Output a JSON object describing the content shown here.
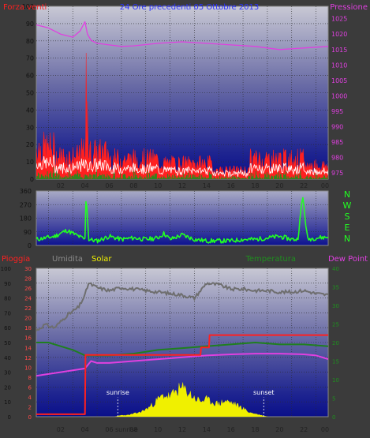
{
  "header": {
    "title": "24 Ore precedenti  05 Ottobre 2013",
    "left_label": "Forza venti",
    "right_label": "Pressione"
  },
  "colors": {
    "bg": "#3b3b3b",
    "wind": "#ff2020",
    "gust": "#ffffff",
    "avg": "#1f8f1f",
    "pressure": "#e040e0",
    "direction": "#22ff22",
    "rain": "#ff2020",
    "humidity": "#6e6e6e",
    "solar": "#f0f000",
    "temperature": "#1f7f1f",
    "dewpoint": "#e040e0",
    "title": "#2a32ff"
  },
  "x_ticks": [
    "02",
    "04",
    "06",
    "08",
    "10",
    "12",
    "14",
    "16",
    "18",
    "20",
    "22",
    "00"
  ],
  "chart_data": [
    {
      "type": "line",
      "title": "24 Ore precedenti  05 Ottobre 2013",
      "left_axis": {
        "label": "Forza venti",
        "range": [
          0,
          100
        ],
        "ticks": [
          "0",
          "10",
          "20",
          "30",
          "40",
          "50",
          "60",
          "70",
          "80",
          "90",
          "100"
        ]
      },
      "right_axis": {
        "label": "Pressione",
        "range": [
          973,
          1029
        ],
        "ticks": [
          "975",
          "980",
          "985",
          "990",
          "995",
          "1000",
          "1005",
          "1010",
          "1015",
          "1020",
          "1025"
        ]
      },
      "pressure": {
        "hours": [
          0,
          1,
          2,
          3,
          3.6,
          4.0,
          4.2,
          4.5,
          5,
          6,
          7,
          8,
          10,
          12,
          14,
          16,
          18,
          20,
          22,
          24
        ],
        "values": [
          1023,
          1022,
          1020,
          1019,
          1021,
          1024,
          1020,
          1018,
          1017,
          1016.5,
          1016,
          1016.2,
          1017,
          1017.5,
          1017,
          1016.5,
          1016,
          1015,
          1015.5,
          1016
        ]
      },
      "wind_spikes": [
        {
          "hour": 4.1,
          "value": 73
        },
        {
          "hour": 4.2,
          "value": 45
        }
      ]
    },
    {
      "type": "line",
      "direction_axis": {
        "range": [
          0,
          360
        ],
        "ticks": [
          "0",
          "90",
          "180",
          "270",
          "360"
        ]
      },
      "compass_labels": [
        "N",
        "W",
        "S",
        "E",
        "N"
      ],
      "direction": {
        "hours": [
          0,
          0.8,
          1.5,
          2.5,
          3.5,
          4.0,
          4.1,
          4.3,
          5,
          6,
          7,
          8,
          9,
          10,
          10.5,
          11,
          12,
          13,
          14,
          15,
          16,
          17,
          18,
          19,
          20,
          21,
          21.5,
          21.9,
          22.3,
          23,
          24
        ],
        "values": [
          40,
          50,
          60,
          100,
          60,
          40,
          360,
          40,
          30,
          60,
          40,
          50,
          40,
          50,
          80,
          40,
          70,
          40,
          30,
          30,
          30,
          40,
          40,
          50,
          60,
          40,
          40,
          330,
          40,
          50,
          55
        ]
      }
    },
    {
      "type": "line",
      "labels": [
        "Pioggia",
        "Umidita",
        "Solar",
        "Temperatura",
        "Dew Point"
      ],
      "humidity_axis": {
        "range": [
          0,
          100
        ],
        "ticks": [
          "0",
          "10",
          "20",
          "30",
          "40",
          "50",
          "60",
          "70",
          "80",
          "90",
          "100"
        ]
      },
      "rain_axis": {
        "range": [
          0,
          30
        ],
        "ticks": [
          "0",
          "2",
          "4",
          "6",
          "8",
          "10",
          "12",
          "14",
          "16",
          "18",
          "20",
          "22",
          "24",
          "26",
          "28",
          "30"
        ]
      },
      "temperature_axis": {
        "range": [
          0,
          40
        ],
        "ticks": [
          "0",
          "5",
          "10",
          "15",
          "20",
          "25",
          "30",
          "35",
          "40"
        ]
      },
      "rain": {
        "hours": [
          0,
          4.0,
          4.05,
          13.5,
          13.55,
          14.2,
          14.25,
          24
        ],
        "values": [
          0.5,
          0.5,
          12.5,
          12.5,
          14.0,
          14.0,
          16.5,
          16.5
        ]
      },
      "humidity": {
        "hours": [
          0,
          0.7,
          1.5,
          2.5,
          3.5,
          4.0,
          4.3,
          5,
          6,
          7,
          8,
          9,
          10,
          11,
          12,
          13,
          14,
          15,
          16,
          17,
          18,
          19,
          20,
          21,
          22,
          23,
          24
        ],
        "values": [
          58,
          62,
          60,
          68,
          74,
          82,
          90,
          87,
          85,
          87,
          86,
          85,
          84,
          83,
          82,
          80,
          90,
          89,
          86,
          86,
          85,
          85,
          84,
          84,
          85,
          83,
          82
        ]
      },
      "temperature": {
        "hours": [
          0,
          1,
          2,
          3,
          4,
          5,
          6,
          8,
          10,
          12,
          14,
          16,
          18,
          20,
          22,
          24
        ],
        "values": [
          20,
          20,
          19,
          18,
          16.5,
          16.5,
          16.5,
          17,
          18,
          18.5,
          19,
          19.5,
          20,
          19.5,
          19.5,
          19
        ],
        "color": "#1f7f1f"
      },
      "dewpoint": {
        "hours": [
          0,
          1,
          2,
          3,
          4,
          4.5,
          5,
          6,
          8,
          10,
          12,
          14,
          16,
          18,
          20,
          22,
          23,
          24
        ],
        "values": [
          11,
          11.5,
          12,
          12.5,
          13,
          15,
          14.5,
          14.5,
          15,
          15.5,
          16,
          16.5,
          16.8,
          17,
          17,
          16.8,
          16.5,
          15.5
        ]
      },
      "solar": {
        "hours": [
          6.5,
          7,
          7.5,
          8,
          8.5,
          9,
          9.5,
          10,
          10.5,
          11,
          11.5,
          12,
          12.5,
          13,
          13.5,
          14,
          14.5,
          15,
          15.5,
          16,
          16.5,
          17,
          17.5,
          18,
          18.5,
          19
        ],
        "values": [
          0,
          1,
          1,
          2,
          3,
          5,
          8,
          12,
          15,
          14,
          18,
          20,
          17,
          13,
          11,
          12,
          10,
          9,
          11,
          10,
          8,
          6,
          3,
          2,
          1,
          0
        ]
      },
      "annotations": [
        {
          "text": "sunrise",
          "hour": 6.7
        },
        {
          "text": "sunset",
          "hour": 18.7
        }
      ],
      "x_extra_label": "sunrise"
    }
  ]
}
